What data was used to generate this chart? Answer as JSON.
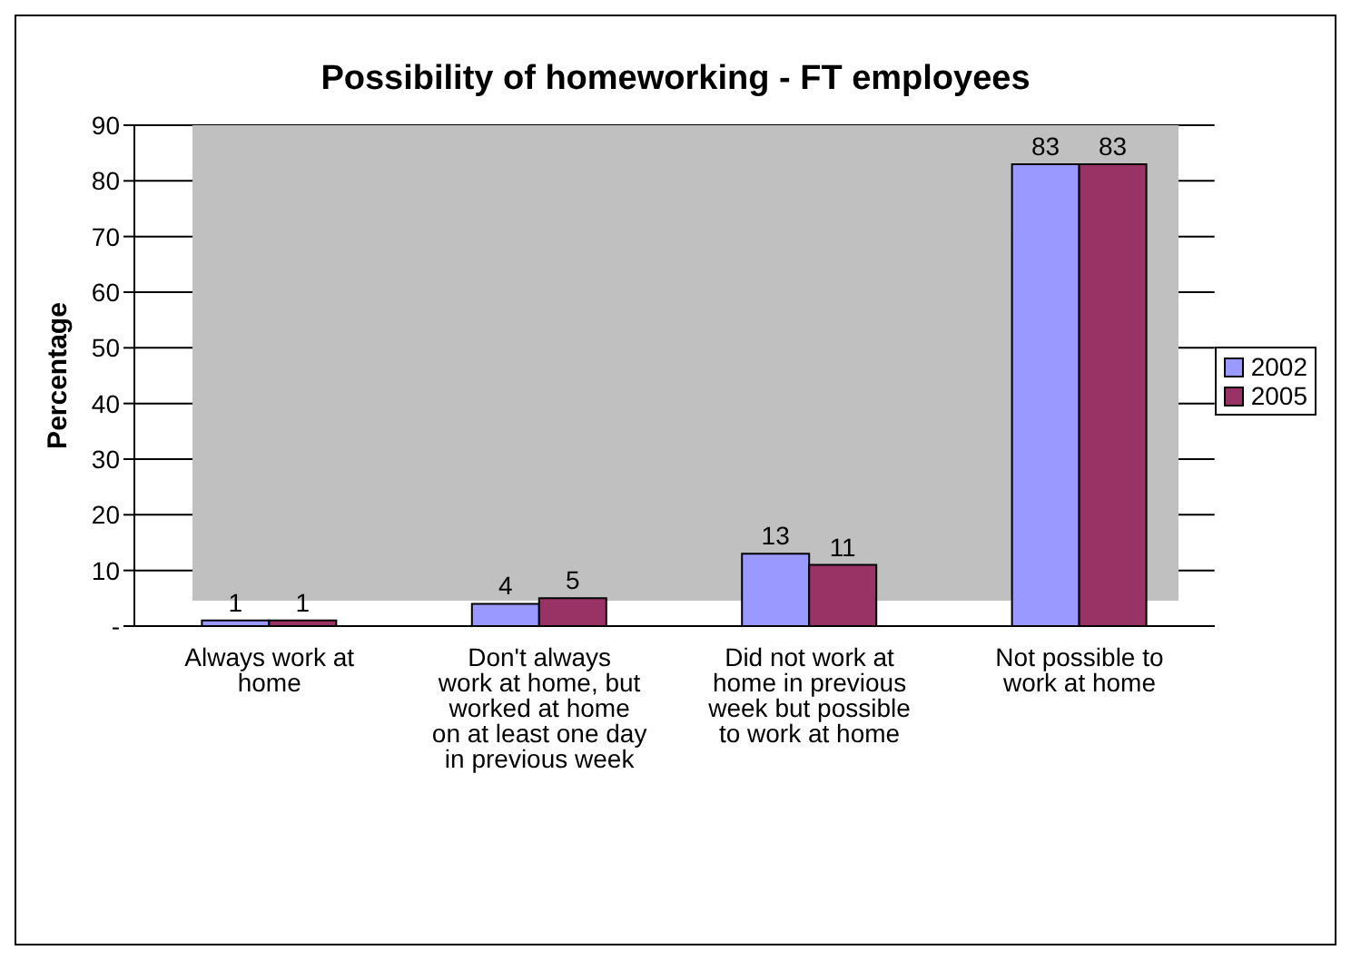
{
  "chart_data": {
    "type": "bar",
    "title": "Possibility of homeworking - FT employees",
    "ylabel": "Percentage",
    "categories": [
      "Always work at home",
      "Don't always work at home, but worked at home on at least one day in previous week",
      "Did not work at home in previous week but possible to work at home",
      "Not possible to work at home"
    ],
    "series": [
      {
        "name": "2002",
        "color": "#9999ff",
        "values": [
          1,
          4,
          13,
          83
        ]
      },
      {
        "name": "2005",
        "color": "#993366",
        "values": [
          1,
          5,
          11,
          83
        ]
      }
    ],
    "ylim": [
      0,
      90
    ],
    "yticks": [
      {
        "value": 0,
        "label": "-"
      },
      10,
      20,
      30,
      40,
      50,
      60,
      70,
      80,
      90
    ],
    "grid": "y",
    "legend": "right",
    "data_labels": true
  }
}
